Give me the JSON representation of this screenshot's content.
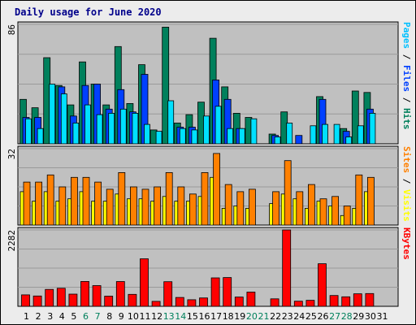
{
  "chart_data": {
    "type": "bar",
    "title": "Daily usage for June 2020",
    "days": [
      "1",
      "2",
      "3",
      "4",
      "5",
      "6",
      "7",
      "8",
      "9",
      "10",
      "11",
      "12",
      "13",
      "14",
      "15",
      "16",
      "17",
      "18",
      "19",
      "20",
      "21",
      "22",
      "23",
      "24",
      "25",
      "26",
      "27",
      "28",
      "29",
      "30",
      "31"
    ],
    "weekend_days": [
      "6",
      "7",
      "13",
      "14",
      "20",
      "21",
      "27",
      "28"
    ],
    "colors": {
      "hits": "#00805c",
      "files": "#0040ff",
      "pages": "#00e0ff",
      "visits": "#ffff00",
      "sites": "#ff8000",
      "kbytes": "#ff0000",
      "weekday_label": "#000000",
      "weekend_label": "#00805c",
      "title": "#00008b"
    },
    "panels": [
      {
        "name": "hits-files-pages",
        "ymax": 86,
        "label_parts": [
          {
            "text": "Pages",
            "color": "#00c0ff"
          },
          {
            "text": " / ",
            "color": "#000000"
          },
          {
            "text": "Files",
            "color": "#0040ff"
          },
          {
            "text": " / ",
            "color": "#000000"
          },
          {
            "text": "Hits",
            "color": "#00805c"
          }
        ],
        "series": [
          {
            "key": "hits",
            "values": [
              32,
              26,
              62,
              42,
              28,
              59,
              43,
              28,
              70,
              29,
              57,
              10,
              84,
              15,
              21,
              30,
              76,
              41,
              22,
              19,
              0,
              7,
              23,
              0,
              0,
              34,
              0,
              11,
              38,
              37,
              0
            ]
          },
          {
            "key": "files",
            "values": [
              19,
              19,
              0,
              41,
              20,
              42,
              43,
              25,
              39,
              23,
              50,
              0,
              0,
              12,
              12,
              0,
              46,
              32,
              11,
              0,
              0,
              6,
              0,
              6,
              0,
              32,
              0,
              9,
              0,
              25,
              0
            ]
          },
          {
            "key": "pages",
            "values": [
              18,
              11,
              43,
              36,
              15,
              28,
              21,
              22,
              25,
              22,
              14,
              9,
              31,
              11,
              10,
              20,
              27,
              11,
              11,
              18,
              0,
              5,
              15,
              0,
              13,
              14,
              14,
              5,
              13,
              22,
              0
            ]
          }
        ]
      },
      {
        "name": "visits-sites",
        "ymax": 32,
        "label_parts": [
          {
            "text": "Sites",
            "color": "#ff8000"
          },
          {
            "text": " / ",
            "color": "#000000"
          },
          {
            "text": "Visits",
            "color": "#ffff00"
          }
        ],
        "series": [
          {
            "key": "visits",
            "values": [
              14,
              10,
              14,
              10,
              11,
              14,
              10,
              10,
              13,
              11,
              11,
              10,
              12,
              10,
              10,
              12,
              20,
              7,
              8,
              7,
              0,
              9,
              13,
              11,
              7,
              10,
              8,
              4,
              7,
              14,
              0
            ]
          },
          {
            "key": "sites",
            "values": [
              18,
              18,
              21,
              16,
              20,
              20,
              18,
              15,
              22,
              16,
              15,
              16,
              22,
              16,
              13,
              22,
              30,
              17,
              14,
              15,
              0,
              14,
              27,
              14,
              17,
              11,
              12,
              8,
              21,
              20,
              0
            ]
          }
        ]
      },
      {
        "name": "kbytes",
        "ymax": 2282,
        "label_parts": [
          {
            "text": "KBytes",
            "color": "#ff0000"
          }
        ],
        "series": [
          {
            "key": "kbytes",
            "values": [
              343,
              308,
              505,
              540,
              364,
              742,
              619,
              304,
              741,
              356,
              1420,
              148,
              735,
              265,
              197,
              251,
              850,
              860,
              277,
              425,
              0,
              224,
              2282,
              154,
              180,
              1271,
              323,
              285,
              374,
              380,
              0
            ]
          }
        ]
      }
    ]
  }
}
